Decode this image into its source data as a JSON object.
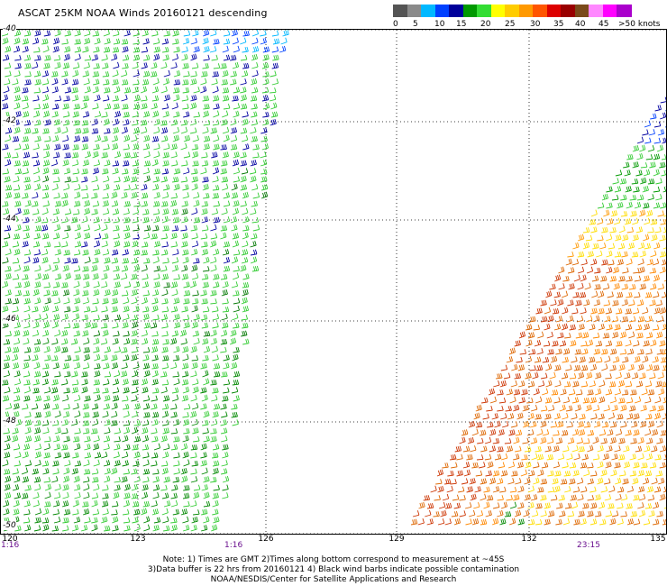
{
  "title": "ASCAT 25KM NOAA Winds 20160121 descending",
  "legend": {
    "swatches": [
      {
        "color": "#545454"
      },
      {
        "color": "#8a8a8a"
      },
      {
        "color": "#00b8ff"
      },
      {
        "color": "#0040ff"
      },
      {
        "color": "#00009a"
      },
      {
        "color": "#009900"
      },
      {
        "color": "#33dd33"
      },
      {
        "color": "#ffff00"
      },
      {
        "color": "#ffcc00"
      },
      {
        "color": "#ff9900"
      },
      {
        "color": "#ff5500"
      },
      {
        "color": "#dd0000"
      },
      {
        "color": "#990000"
      },
      {
        "color": "#7a4a1a"
      },
      {
        "color": "#ff88ff"
      },
      {
        "color": "#ff00ff"
      },
      {
        "color": "#aa00cc"
      }
    ],
    "labels": [
      "0",
      "5",
      "10",
      "15",
      "20",
      "25",
      "30",
      "35",
      "40",
      "45",
      ">50 knots"
    ]
  },
  "map": {
    "lat_labels": [
      "-40",
      "-42",
      "-44",
      "-46",
      "-48",
      "-50"
    ],
    "lon_labels": [
      "120",
      "123",
      "126",
      "129",
      "132",
      "135"
    ],
    "times": [
      "1:16",
      "1:16",
      "23:15"
    ]
  },
  "notes": [
    "Note: 1) Times are GMT 2)Times along bottom correspond to measurement at ~45S",
    "3)Data buffer is 22 hrs from 20160121 4) Black wind barbs indicate possible contamination",
    "NOAA/NESDIS/Center for Satellite Applications and Research"
  ]
}
